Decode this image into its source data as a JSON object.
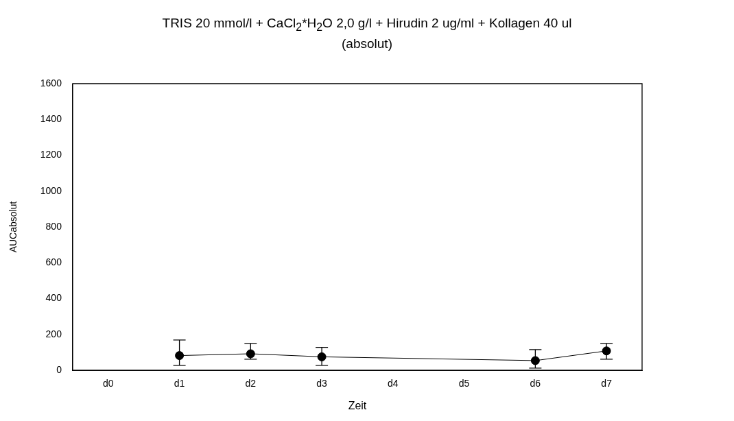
{
  "chart_data": {
    "type": "line",
    "title": "TRIS 20 mmol/l + CaCl$_{2}$*H$_{2}$O 2,0 g/l + Hirudin 2 ug/ml + Kollagen 40 ul",
    "subtitle": "(absolut)",
    "xlabel": "Zeit",
    "ylabel": "AUCabsolut",
    "categories": [
      "d0",
      "d1",
      "d2",
      "d3",
      "d4",
      "d5",
      "d6",
      "d7"
    ],
    "series": [
      {
        "color": "#000000",
        "values": [
          null,
          82,
          92,
          75,
          null,
          null,
          54,
          108
        ],
        "errors": [
          null,
          [
            27,
            169
          ],
          [
            62,
            150
          ],
          [
            27,
            128
          ],
          null,
          null,
          [
            12,
            115
          ],
          [
            62,
            150
          ]
        ]
      }
    ],
    "ylim": [
      0,
      1600
    ],
    "yticks": [
      0,
      200,
      400,
      600,
      800,
      1000,
      1200,
      1400,
      1600
    ],
    "grid": false,
    "legend": false,
    "marker": "circle",
    "line_style": "solid"
  }
}
